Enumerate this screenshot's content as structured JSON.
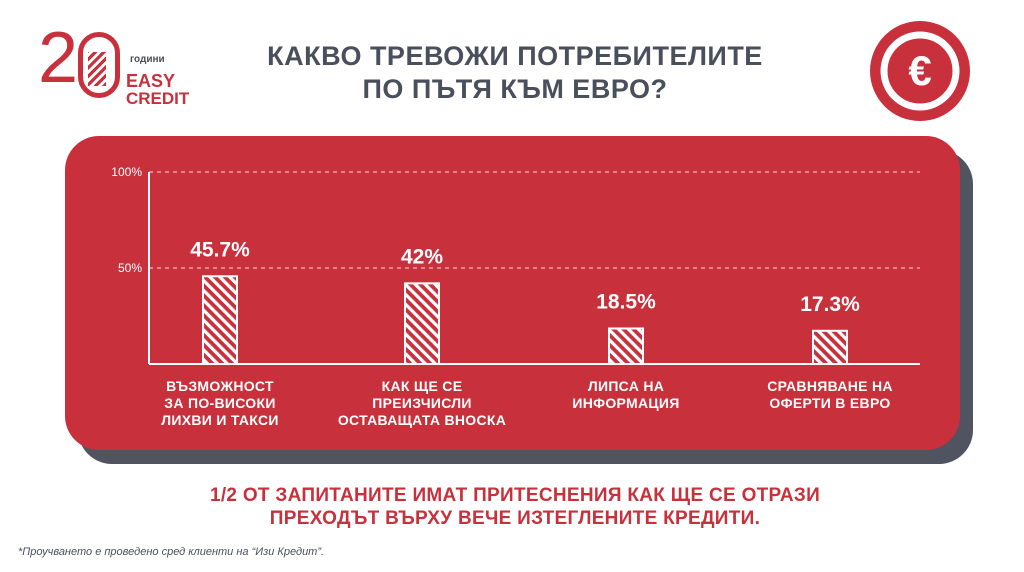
{
  "logo": {
    "number": "20",
    "years_label": "години",
    "brand_line1": "EASY",
    "brand_line2": "CREDIT",
    "brand_color": "#c8313c"
  },
  "title": {
    "line1": "КАКВО ТРЕВОЖИ ПОТРЕБИТЕЛИТЕ",
    "line2": "ПО ПЪТЯ КЪМ ЕВРО?"
  },
  "badge": {
    "icon": "euro-icon",
    "symbol": "€"
  },
  "colors": {
    "accent": "#c8313c",
    "dark_gray": "#4a4f5c",
    "shadow_gray": "#4f5460",
    "white": "#ffffff"
  },
  "chart_data": {
    "type": "bar",
    "categories": [
      [
        "ВЪЗМОЖНОСТ",
        "ЗА ПО-ВИСОКИ",
        "ЛИХВИ И ТАКСИ"
      ],
      [
        "КАК ЩЕ СЕ",
        "ПРЕИЗЧИСЛИ",
        "ОСТАВАЩАТА ВНОСКА"
      ],
      [
        "ЛИПСА НА",
        "ИНФОРМАЦИЯ"
      ],
      [
        "СРАВНЯВАНЕ НА",
        "ОФЕРТИ В ЕВРО"
      ]
    ],
    "values": [
      45.7,
      42,
      18.5,
      17.3
    ],
    "data_labels": [
      "45.7%",
      "42%",
      "18.5%",
      "17.3%"
    ],
    "yticks": [
      {
        "value": 100,
        "label": "100%"
      },
      {
        "value": 50,
        "label": "50%"
      }
    ],
    "ylim": [
      0,
      100
    ],
    "grid": "dashed horizontal at 50 and 100",
    "bar_fill": "hatched white diagonal stripes",
    "title": "",
    "xlabel": "",
    "ylabel": ""
  },
  "footer": {
    "line1": "1/2 ОТ ЗАПИТАНИТЕ ИМАТ ПРИТЕСНЕНИЯ КАК ЩЕ СЕ ОТРАЗИ",
    "line2": "ПРЕХОДЪТ ВЪРХУ ВЕЧЕ ИЗТЕГЛЕНИТЕ КРЕДИТИ."
  },
  "footnote": "*Проучването е проведено сред клиенти на “Изи Кредит”."
}
